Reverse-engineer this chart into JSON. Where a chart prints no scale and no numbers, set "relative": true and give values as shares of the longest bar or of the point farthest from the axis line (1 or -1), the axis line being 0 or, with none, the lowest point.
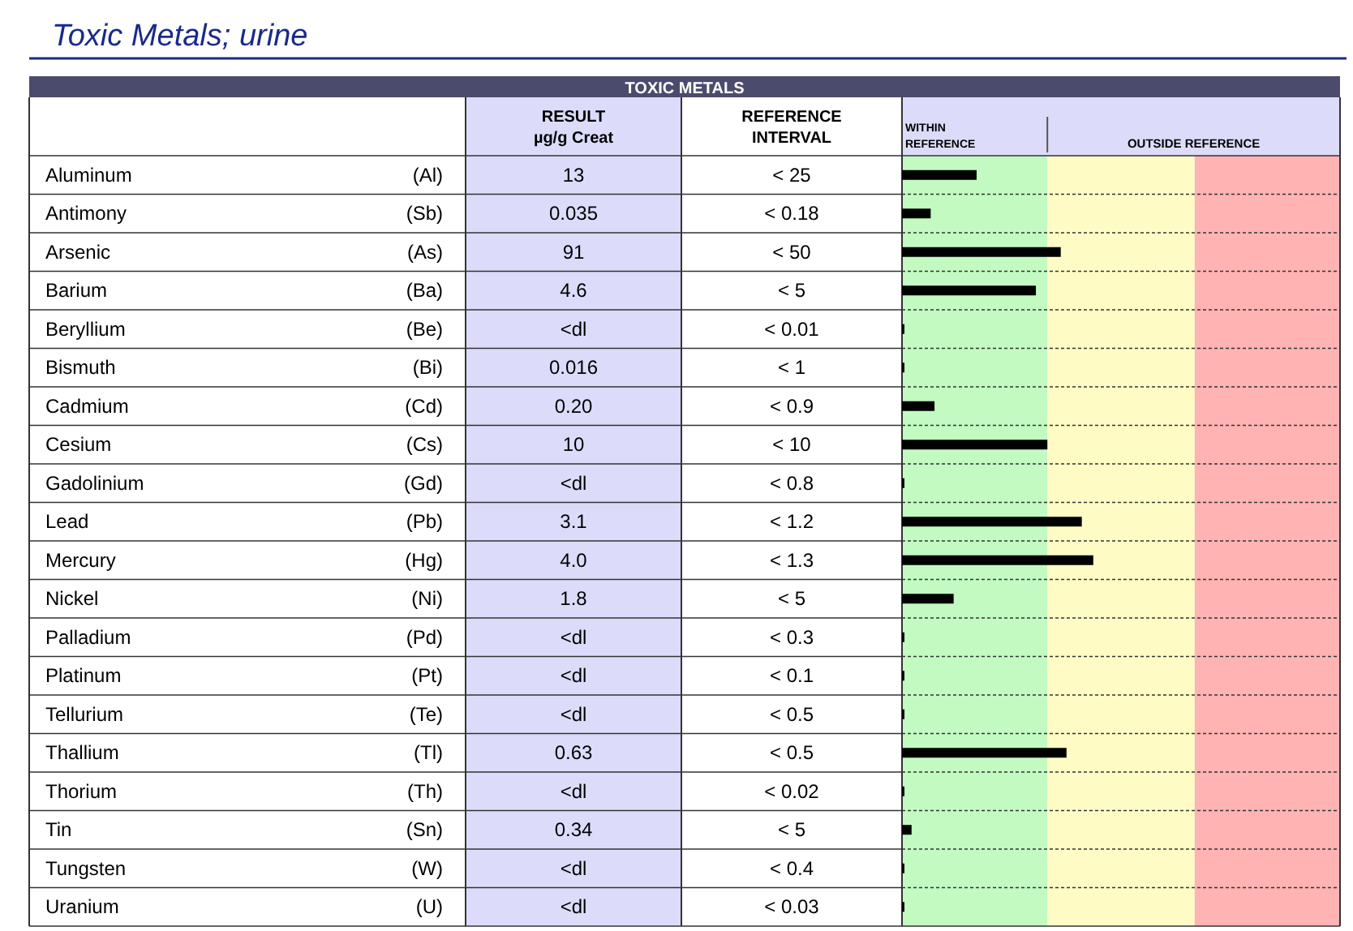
{
  "chart_data": {
    "type": "bar",
    "orientation": "horizontal",
    "relative": true,
    "title": "Toxic Metals; urine",
    "categories": [
      "Aluminum",
      "Antimony",
      "Arsenic",
      "Barium",
      "Beryllium",
      "Bismuth",
      "Cadmium",
      "Cesium",
      "Gadolinium",
      "Lead",
      "Mercury",
      "Nickel",
      "Palladium",
      "Platinum",
      "Tellurium",
      "Thallium",
      "Thorium",
      "Tin",
      "Tungsten",
      "Uranium"
    ],
    "series": [
      {
        "color": "#000000",
        "values": [
          0.39,
          0.15,
          0.83,
          0.7,
          0,
          0,
          0.17,
          0.76,
          0,
          0.94,
          1,
          0.27,
          0,
          0,
          0,
          0.86,
          0,
          0.05,
          0,
          0
        ]
      }
    ],
    "bands": [
      {
        "axis": "x",
        "from": 0,
        "to": 0.76,
        "label": "WITHIN REFERENCE",
        "color": "#c2fac2"
      },
      {
        "axis": "x",
        "from": 0.76,
        "to": 1.53,
        "color": "#fefcc4"
      },
      {
        "axis": "x",
        "from": 1.53,
        "to": 2.29,
        "color": "#ffb3b3"
      }
    ],
    "annotations": [
      "TOXIC METALS",
      "RESULT",
      "µg/g Creat",
      "REFERENCE INTERVAL",
      "OUTSIDE REFERENCE",
      "(Al)",
      "13",
      "< 25",
      "(Sb)",
      "0.035",
      "< 0.18",
      "(As)",
      "91",
      "< 50",
      "(Ba)",
      "4.6",
      "< 5",
      "(Be)",
      "<dl",
      "< 0.01",
      "(Bi)",
      "0.016",
      "< 1",
      "(Cd)",
      "0.20",
      "< 0.9",
      "(Cs)",
      "10",
      "< 10",
      "(Gd)",
      "<dl",
      "< 0.8",
      "(Pb)",
      "3.1",
      "< 1.2",
      "(Hg)",
      "4.0",
      "< 1.3",
      "(Ni)",
      "1.8",
      "< 5",
      "(Pd)",
      "<dl",
      "< 0.3",
      "(Pt)",
      "<dl",
      "< 0.1",
      "(Te)",
      "<dl",
      "< 0.5",
      "(Tl)",
      "0.63",
      "< 0.5",
      "(Th)",
      "<dl",
      "< 0.02",
      "(Sn)",
      "0.34",
      "< 5",
      "(W)",
      "<dl",
      "< 0.4",
      "(U)",
      "<dl",
      "< 0.03"
    ]
  }
}
